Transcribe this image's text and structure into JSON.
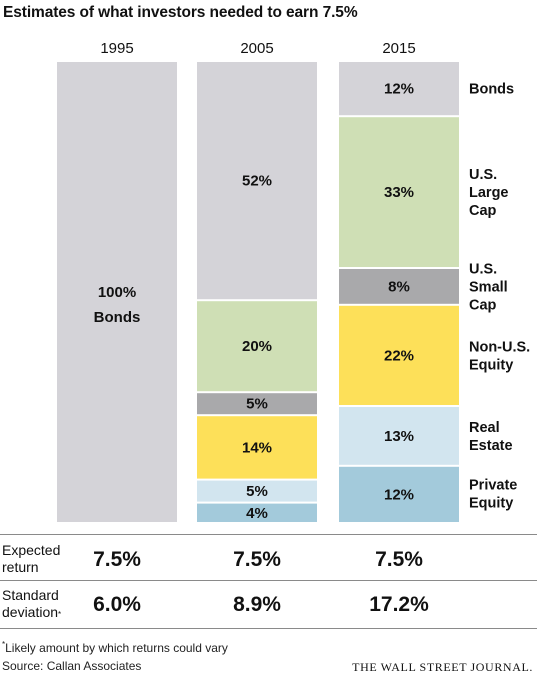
{
  "title": "Estimates of what investors needed to earn 7.5%",
  "chart_data": {
    "type": "bar",
    "stacked": true,
    "unit": "%",
    "categories": [
      "1995",
      "2005",
      "2015"
    ],
    "series": [
      {
        "name": "Bonds",
        "color": "#d4d3d8",
        "values": [
          100,
          52,
          12
        ]
      },
      {
        "name": "U.S. Large Cap",
        "color": "#cfdfb5",
        "values": [
          0,
          20,
          33
        ]
      },
      {
        "name": "U.S. Small Cap",
        "color": "#a9a9ab",
        "values": [
          0,
          5,
          8
        ]
      },
      {
        "name": "Non-U.S. Equity",
        "color": "#fde059",
        "values": [
          0,
          14,
          22
        ]
      },
      {
        "name": "Real Estate",
        "color": "#d2e5ef",
        "values": [
          0,
          5,
          13
        ]
      },
      {
        "name": "Private Equity",
        "color": "#a3cadb",
        "values": [
          0,
          4,
          12
        ]
      }
    ],
    "segment_labels": [
      [
        "100%",
        "",
        "",
        "",
        "",
        ""
      ],
      [
        "52%",
        "20%",
        "5%",
        "14%",
        "5%",
        "4%"
      ],
      [
        "12%",
        "33%",
        "8%",
        "22%",
        "13%",
        "12%"
      ]
    ],
    "column_1_sublabel": "Bonds",
    "category_labels": [
      [
        "Bonds"
      ],
      [
        "U.S.",
        "Large",
        "Cap"
      ],
      [
        "U.S.",
        "Small",
        "Cap"
      ],
      [
        "Non-U.S.",
        "Equity"
      ],
      [
        "Real",
        "Estate"
      ],
      [
        "Private",
        "Equity"
      ]
    ],
    "ylim": [
      0,
      100
    ]
  },
  "stats": {
    "expected_return": {
      "label_line1": "Expected",
      "label_line2": "return",
      "values": [
        "7.5%",
        "7.5%",
        "7.5%"
      ]
    },
    "standard_deviation": {
      "label_line1": "Standard",
      "label_line2": "deviation",
      "label_mark": "*",
      "values": [
        "6.0%",
        "8.9%",
        "17.2%"
      ]
    }
  },
  "footnote": {
    "mark": "*",
    "text": "Likely amount by which returns could vary"
  },
  "source": "Source: Callan Associates",
  "publisher": "THE WALL STREET JOURNAL."
}
